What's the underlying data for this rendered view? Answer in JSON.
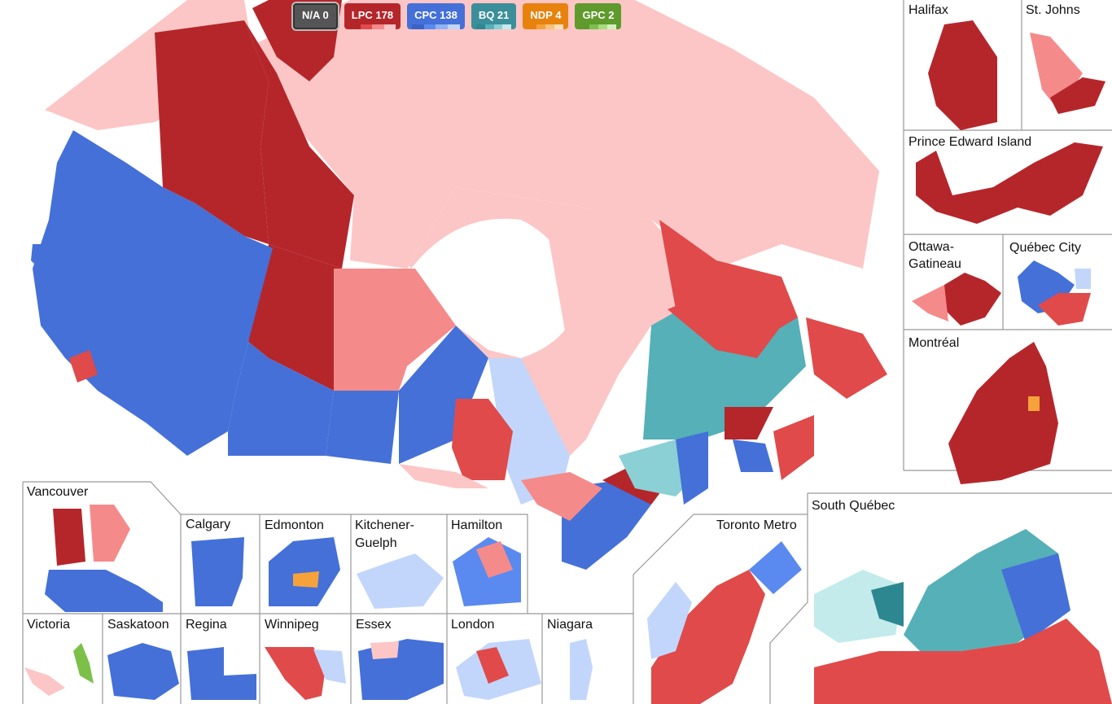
{
  "legend": [
    {
      "id": "na",
      "label": "N/A 0",
      "color": "#555555",
      "shades": []
    },
    {
      "id": "lpc",
      "label": "LPC 178",
      "color": "#b5262b",
      "shades": [
        "#b5262b",
        "#e04a4a",
        "#f58a8a",
        "#fcc6c6"
      ]
    },
    {
      "id": "cpc",
      "label": "CPC 138",
      "color": "#4470d8",
      "shades": [
        "#3a63c8",
        "#5a8aef",
        "#8fb3f5",
        "#c2d6fb"
      ]
    },
    {
      "id": "bq",
      "label": "BQ 21",
      "color": "#3a8f9a",
      "shades": [
        "#2d8791",
        "#55b0b8",
        "#8ad0d4",
        "#c3ebeb"
      ]
    },
    {
      "id": "ndp",
      "label": "NDP 4",
      "color": "#e8820f",
      "shades": [
        "#e8820f",
        "#f6a23a",
        "#f9c27a",
        "#fde0b8"
      ]
    },
    {
      "id": "gpc",
      "label": "GPC 2",
      "color": "#5e9a2c",
      "shades": [
        "#5e9a2c",
        "#7cc04a",
        "#a7dc7c",
        "#d3f0bc"
      ]
    }
  ],
  "insets": {
    "halifax": "Halifax",
    "st_johns": "St. Johns",
    "pei": "Prince Edward Island",
    "ottawa_gatineau_1": "Ottawa-",
    "ottawa_gatineau_2": "Gatineau",
    "quebec_city": "Québec City",
    "montreal": "Montréal",
    "south_quebec": "South Québec",
    "toronto_metro": "Toronto Metro",
    "vancouver": "Vancouver",
    "calgary": "Calgary",
    "edmonton": "Edmonton",
    "kitchener_guelph_1": "Kitchener-",
    "kitchener_guelph_2": "Guelph",
    "hamilton": "Hamilton",
    "victoria": "Victoria",
    "saskatoon": "Saskatoon",
    "regina": "Regina",
    "winnipeg": "Winnipeg",
    "essex": "Essex",
    "london": "London",
    "niagara": "Niagara"
  }
}
